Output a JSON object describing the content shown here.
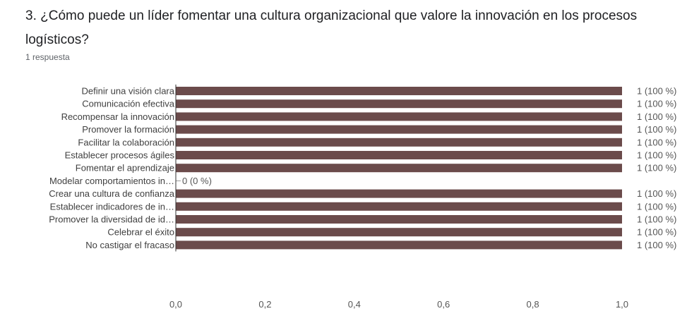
{
  "question": {
    "title": "3. ¿Cómo puede un líder fomentar una cultura organizacional que valore la innovación en los procesos logísticos?",
    "response_count": "1 respuesta"
  },
  "colors": {
    "bar": "#6b4b4b",
    "axis": "#333333"
  },
  "chart_data": {
    "type": "bar",
    "orientation": "horizontal",
    "categories": [
      "Definir una visión clara",
      "Comunicación efectiva",
      "Recompensar la innovación",
      "Promover la formación",
      "Facilitar la colaboración",
      "Establecer procesos ágiles",
      "Fomentar el aprendizaje",
      "Modelar comportamientos in…",
      "Crear una cultura de confianza",
      "Establecer indicadores de in…",
      "Promover la diversidad de id…",
      "Celebrar el éxito",
      "No castigar el fracaso"
    ],
    "values": [
      1,
      1,
      1,
      1,
      1,
      1,
      1,
      0,
      1,
      1,
      1,
      1,
      1
    ],
    "value_labels": [
      "1 (100 %)",
      "1 (100 %)",
      "1 (100 %)",
      "1 (100 %)",
      "1 (100 %)",
      "1 (100 %)",
      "1 (100 %)",
      "0 (0 %)",
      "1 (100 %)",
      "1 (100 %)",
      "1 (100 %)",
      "1 (100 %)",
      "1 (100 %)"
    ],
    "xlim": [
      0,
      1
    ],
    "x_ticks": [
      "0,0",
      "0,2",
      "0,4",
      "0,6",
      "0,8",
      "1,0"
    ],
    "grid": false,
    "xlabel": "",
    "ylabel": ""
  }
}
